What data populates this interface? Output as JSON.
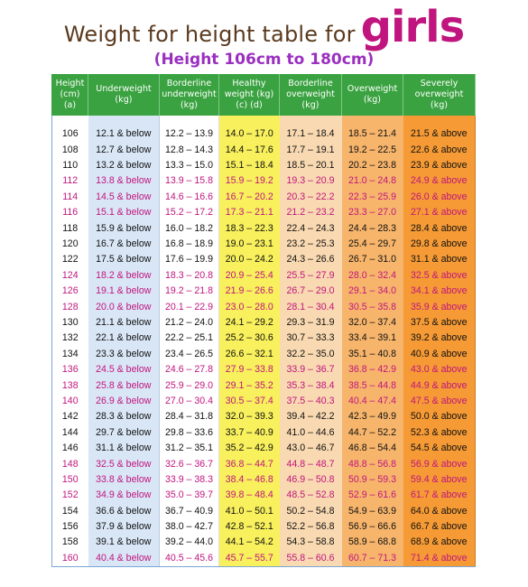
{
  "title": {
    "main": "Weight for height table for",
    "emphasis": "girls",
    "subtitle": "(Height 106cm to 180cm)"
  },
  "colors": {
    "header_green": "#3aa240",
    "pink_text": "#c0157e",
    "underweight_blue": "#d9e6f6",
    "healthy_yellow": "#f8f05c",
    "borderline_over_peach": "#f9d9b1",
    "overweight_orange": "#f7b56c",
    "severe_orange": "#f59a35"
  },
  "table": {
    "headers": [
      "Height\n(cm)\n(a)",
      "Underweight\n(kg)",
      "Borderline\nunderweight\n(kg)",
      "Healthy\nweight (kg)\n(c)     (d)",
      "Borderline\noverweight\n(kg)",
      "Overweight\n(kg)",
      "Severely\noverweight\n(kg)"
    ],
    "rows": [
      {
        "pink": false,
        "cells": [
          "106",
          "12.1 & below",
          "12.2 – 13.9",
          "14.0 – 17.0",
          "17.1 – 18.4",
          "18.5 – 21.4",
          "21.5 & above"
        ]
      },
      {
        "pink": false,
        "cells": [
          "108",
          "12.7 & below",
          "12.8 – 14.3",
          "14.4 – 17.6",
          "17.7 – 19.1",
          "19.2 – 22.5",
          "22.6 & above"
        ]
      },
      {
        "pink": false,
        "cells": [
          "110",
          "13.2 & below",
          "13.3 – 15.0",
          "15.1 – 18.4",
          "18.5 – 20.1",
          "20.2 – 23.8",
          "23.9 & above"
        ]
      },
      {
        "pink": true,
        "cells": [
          "112",
          "13.8 & below",
          "13.9 – 15.8",
          "15.9 – 19.2",
          "19.3 – 20.9",
          "21.0 – 24.8",
          "24.9 & above"
        ]
      },
      {
        "pink": true,
        "cells": [
          "114",
          "14.5 & below",
          "14.6 – 16.6",
          "16.7 – 20.2",
          "20.3 – 22.2",
          "22.3 – 25.9",
          "26.0 & above"
        ]
      },
      {
        "pink": true,
        "cells": [
          "116",
          "15.1 & below",
          "15.2 – 17.2",
          "17.3 – 21.1",
          "21.2 – 23.2",
          "23.3 – 27.0",
          "27.1 & above"
        ]
      },
      {
        "pink": false,
        "cells": [
          "118",
          "15.9 & below",
          "16.0 – 18.2",
          "18.3 – 22.3",
          "22.4 – 24.3",
          "24.4 – 28.3",
          "28.4 & above"
        ]
      },
      {
        "pink": false,
        "cells": [
          "120",
          "16.7 & below",
          "16.8 – 18.9",
          "19.0 – 23.1",
          "23.2 – 25.3",
          "25.4 – 29.7",
          "29.8 & above"
        ]
      },
      {
        "pink": false,
        "cells": [
          "122",
          "17.5 & below",
          "17.6 – 19.9",
          "20.0 – 24.2",
          "24.3 – 26.6",
          "26.7 – 31.0",
          "31.1 & above"
        ]
      },
      {
        "pink": true,
        "cells": [
          "124",
          "18.2 & below",
          "18.3 – 20.8",
          "20.9 – 25.4",
          "25.5 – 27.9",
          "28.0 – 32.4",
          "32.5 & above"
        ]
      },
      {
        "pink": true,
        "cells": [
          "126",
          "19.1 & below",
          "19.2 – 21.8",
          "21.9 – 26.6",
          "26.7 – 29.0",
          "29.1 – 34.0",
          "34.1 & above"
        ]
      },
      {
        "pink": true,
        "cells": [
          "128",
          "20.0 & below",
          "20.1 – 22.9",
          "23.0 – 28.0",
          "28.1 – 30.4",
          "30.5 – 35.8",
          "35.9 & above"
        ]
      },
      {
        "pink": false,
        "cells": [
          "130",
          "21.1 & below",
          "21.2 – 24.0",
          "24.1 – 29.2",
          "29.3 – 31.9",
          "32.0 – 37.4",
          "37.5 & above"
        ]
      },
      {
        "pink": false,
        "cells": [
          "132",
          "22.1 & below",
          "22.2 – 25.1",
          "25.2 – 30.6",
          "30.7 – 33.3",
          "33.4 – 39.1",
          "39.2 & above"
        ]
      },
      {
        "pink": false,
        "cells": [
          "134",
          "23.3 & below",
          "23.4 – 26.5",
          "26.6 – 32.1",
          "32.2 – 35.0",
          "35.1 – 40.8",
          "40.9 & above"
        ]
      },
      {
        "pink": true,
        "cells": [
          "136",
          "24.5 & below",
          "24.6 – 27.8",
          "27.9 – 33.8",
          "33.9 – 36.7",
          "36.8 – 42.9",
          "43.0 & above"
        ]
      },
      {
        "pink": true,
        "cells": [
          "138",
          "25.8 & below",
          "25.9 – 29.0",
          "29.1 – 35.2",
          "35.3 – 38.4",
          "38.5 – 44.8",
          "44.9 & above"
        ]
      },
      {
        "pink": true,
        "cells": [
          "140",
          "26.9 & below",
          "27.0 – 30.4",
          "30.5 – 37.4",
          "37.5 – 40.3",
          "40.4 – 47.4",
          "47.5 & above"
        ]
      },
      {
        "pink": false,
        "cells": [
          "142",
          "28.3 & below",
          "28.4 – 31.8",
          "32.0 – 39.3",
          "39.4 – 42.2",
          "42.3 – 49.9",
          "50.0 & above"
        ]
      },
      {
        "pink": false,
        "cells": [
          "144",
          "29.7 & below",
          "29.8 – 33.6",
          "33.7 – 40.9",
          "41.0 – 44.6",
          "44.7 – 52.2",
          "52.3 & above"
        ]
      },
      {
        "pink": false,
        "cells": [
          "146",
          "31.1 & below",
          "31.2 – 35.1",
          "35.2 – 42.9",
          "43.0 – 46.7",
          "46.8 – 54.4",
          "54.5 & above"
        ]
      },
      {
        "pink": true,
        "cells": [
          "148",
          "32.5 & below",
          "32.6 – 36.7",
          "36.8 – 44.7",
          "44.8 – 48.7",
          "48.8 – 56.8",
          "56.9 & above"
        ]
      },
      {
        "pink": true,
        "cells": [
          "150",
          "33.8 & below",
          "33.9 – 38.3",
          "38.4 – 46.8",
          "46.9 – 50.8",
          "50.9 – 59.3",
          "59.4 & above"
        ]
      },
      {
        "pink": true,
        "cells": [
          "152",
          "34.9 & below",
          "35.0 – 39.7",
          "39.8 – 48.4",
          "48.5 – 52.8",
          "52.9 – 61.6",
          "61.7 & above"
        ]
      },
      {
        "pink": false,
        "cells": [
          "154",
          "36.6 & below",
          "36.7 – 40.9",
          "41.0 – 50.1",
          "50.2 – 54.8",
          "54.9 – 63.9",
          "64.0 & above"
        ]
      },
      {
        "pink": false,
        "cells": [
          "156",
          "37.9 & below",
          "38.0 – 42.7",
          "42.8 – 52.1",
          "52.2 – 56.8",
          "56.9 – 66.6",
          "66.7 & above"
        ]
      },
      {
        "pink": false,
        "cells": [
          "158",
          "39.1 & below",
          "39.2 – 44.0",
          "44.1 – 54.2",
          "54.3 – 58.8",
          "58.9 – 68.8",
          "68.9 & above"
        ]
      },
      {
        "pink": true,
        "cells": [
          "160",
          "40.4 & below",
          "40.5 – 45.6",
          "45.7 – 55.7",
          "55.8 – 60.6",
          "60.7 – 71.3",
          "71.4 & above"
        ]
      }
    ]
  }
}
